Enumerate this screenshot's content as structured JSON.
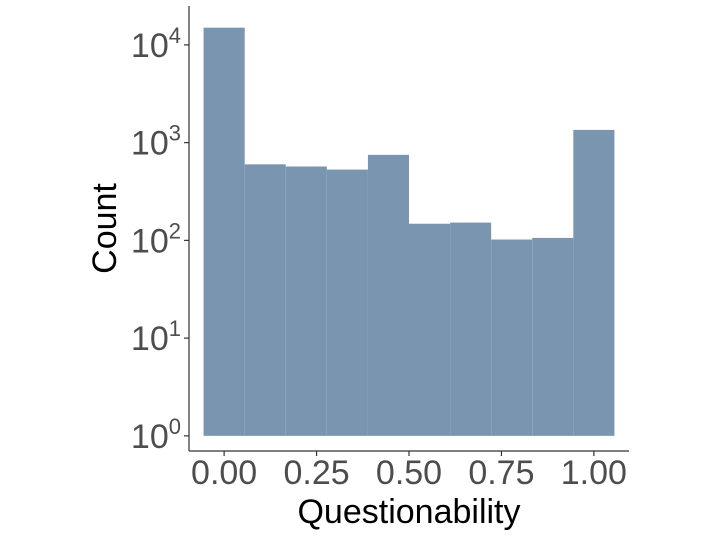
{
  "chart_data": {
    "type": "bar",
    "subtype": "histogram",
    "xlabel": "Questionability",
    "ylabel": "Count",
    "y_scale": "log10",
    "ylim": [
      0.7,
      25000
    ],
    "xlim": [
      -0.095,
      1.095
    ],
    "x_ticks": [
      {
        "value": 0.0,
        "label": "0.00"
      },
      {
        "value": 0.25,
        "label": "0.25"
      },
      {
        "value": 0.5,
        "label": "0.50"
      },
      {
        "value": 0.75,
        "label": "0.75"
      },
      {
        "value": 1.0,
        "label": "1.00"
      }
    ],
    "y_ticks": [
      {
        "value": 1,
        "base": "10",
        "exp": "0"
      },
      {
        "value": 10,
        "base": "10",
        "exp": "1"
      },
      {
        "value": 100,
        "base": "10",
        "exp": "2"
      },
      {
        "value": 1000,
        "base": "10",
        "exp": "3"
      },
      {
        "value": 10000,
        "base": "10",
        "exp": "4"
      }
    ],
    "bins": [
      {
        "x0": -0.0556,
        "x1": 0.0556,
        "count": 15000
      },
      {
        "x0": 0.0556,
        "x1": 0.1667,
        "count": 600
      },
      {
        "x0": 0.1667,
        "x1": 0.2778,
        "count": 570
      },
      {
        "x0": 0.2778,
        "x1": 0.3889,
        "count": 530
      },
      {
        "x0": 0.3889,
        "x1": 0.5,
        "count": 750
      },
      {
        "x0": 0.5,
        "x1": 0.6111,
        "count": 148
      },
      {
        "x0": 0.6111,
        "x1": 0.7222,
        "count": 152
      },
      {
        "x0": 0.7222,
        "x1": 0.8333,
        "count": 102
      },
      {
        "x0": 0.8333,
        "x1": 0.9444,
        "count": 106
      },
      {
        "x0": 0.9444,
        "x1": 1.0556,
        "count": 1350
      }
    ],
    "bar_color": "#7a95b0",
    "axis_color": "#333333",
    "grid": false
  }
}
